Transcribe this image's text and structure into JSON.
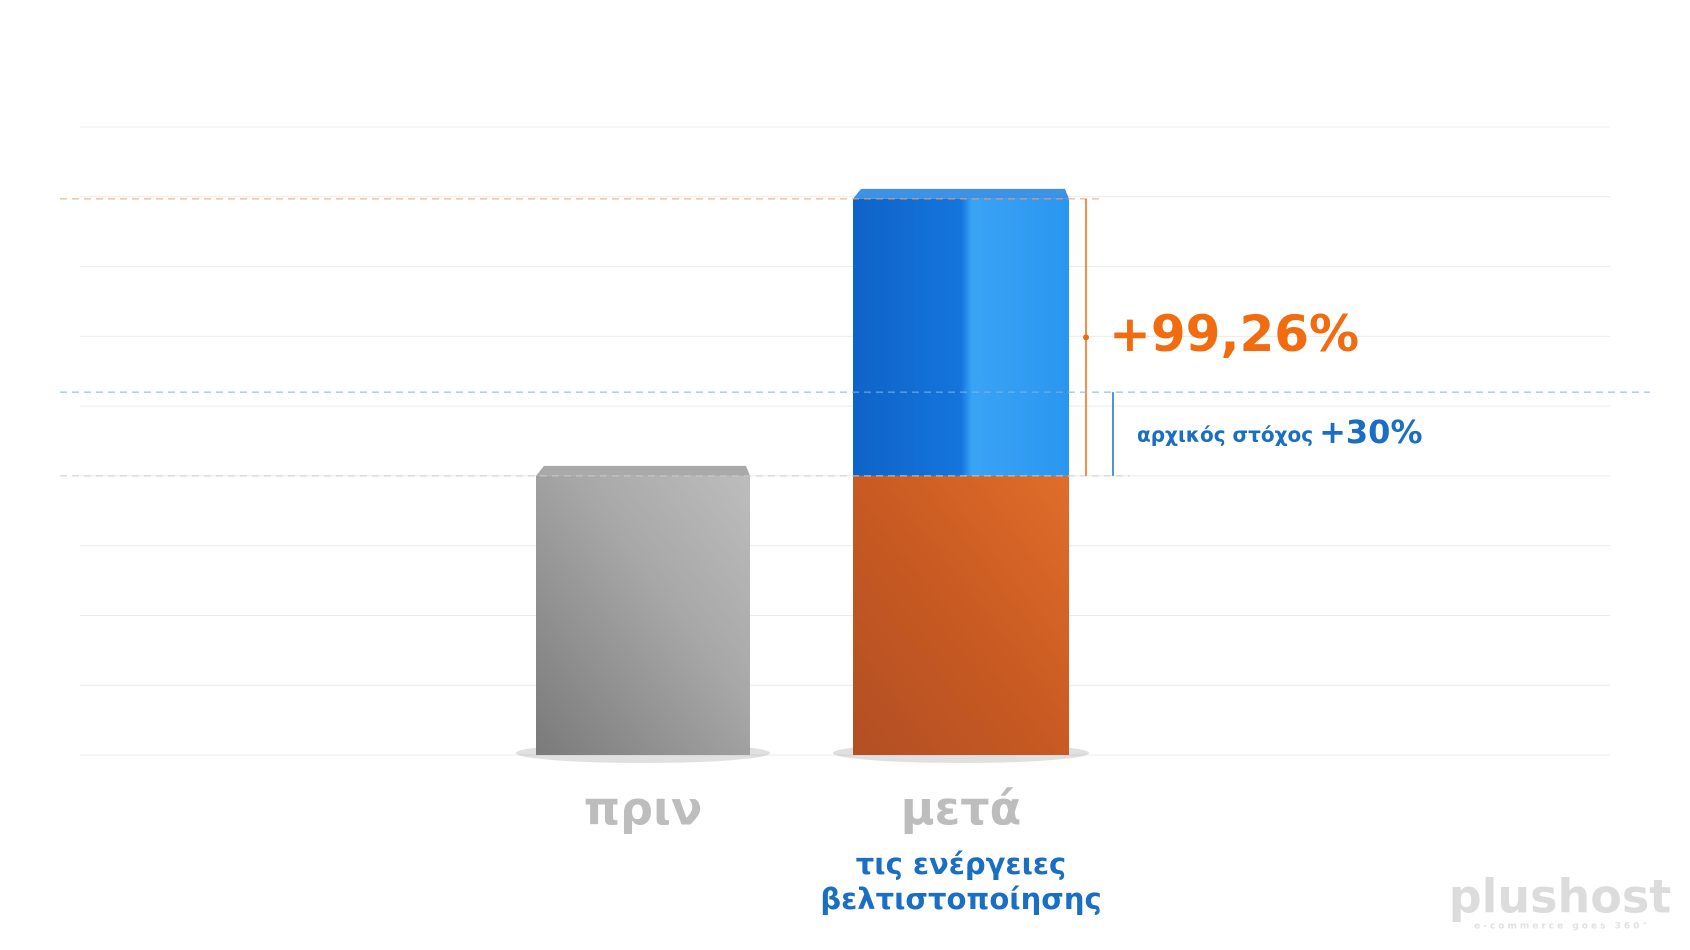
{
  "chart_data": {
    "type": "bar",
    "categories": [
      "πριν",
      "μετά"
    ],
    "category_note": [
      "τις ενέργειες",
      "βελτιστοποίησης"
    ],
    "series": [
      {
        "values": [
          100,
          100
        ],
        "colors": [
          "#9a9a9a",
          "#cf6128"
        ]
      },
      {
        "values": [
          null,
          99.26
        ],
        "color": "#1c7fe2",
        "value_labels": [
          null,
          "+99,26%"
        ],
        "label_color": "#f26b0f"
      }
    ],
    "annotations": [
      {
        "text": "αρχικός στόχος",
        "value": 30,
        "label": "+30%",
        "color": "#1a6fc4"
      }
    ],
    "ylim": [
      0,
      225
    ],
    "yticks": [
      0,
      25,
      50,
      75,
      100,
      125,
      150,
      175,
      200,
      225
    ],
    "grid": true,
    "logo": {
      "name": "plushost",
      "tagline": "e-commerce goes 360°"
    }
  }
}
